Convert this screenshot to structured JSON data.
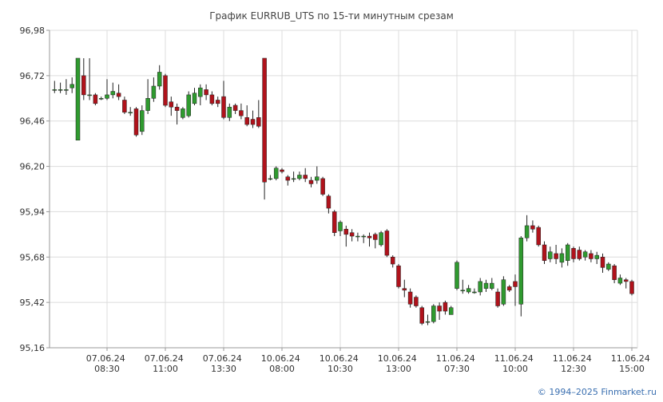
{
  "chart_data": {
    "type": "candlestick",
    "title": "График EURRUB_UTS по 15-ти минутным срезам",
    "credit": "© 1994–2025 Finmarket.ru",
    "up_color": "#2f9a2f",
    "down_color": "#b0121b",
    "grid": true,
    "ylim": [
      95.16,
      96.98
    ],
    "yticks": [
      {
        "value": 95.16,
        "label": "95,16"
      },
      {
        "value": 95.42,
        "label": "95,42"
      },
      {
        "value": 95.68,
        "label": "95,68"
      },
      {
        "value": 95.94,
        "label": "95,94"
      },
      {
        "value": 96.2,
        "label": "96,20"
      },
      {
        "value": 96.46,
        "label": "96,46"
      },
      {
        "value": 96.72,
        "label": "96,72"
      },
      {
        "value": 96.98,
        "label": "96,98"
      }
    ],
    "categories": [
      null,
      null,
      null,
      null,
      null,
      null,
      null,
      null,
      null,
      "07.06.24 08:30",
      null,
      null,
      null,
      null,
      null,
      null,
      null,
      null,
      null,
      "07.06.24 11:00",
      null,
      null,
      null,
      null,
      null,
      null,
      null,
      null,
      null,
      "07.06.24 13:30",
      null,
      null,
      null,
      null,
      null,
      null,
      null,
      null,
      null,
      "10.06.24 08:00",
      null,
      null,
      null,
      null,
      null,
      null,
      null,
      null,
      null,
      "10.06.24 10:30",
      null,
      null,
      null,
      null,
      null,
      null,
      null,
      null,
      null,
      "10.06.24 13:00",
      null,
      null,
      null,
      null,
      null,
      null,
      null,
      null,
      null,
      "11.06.24 07:30",
      null,
      null,
      null,
      null,
      null,
      null,
      null,
      null,
      null,
      "11.06.24 10:00",
      null,
      null,
      null,
      null,
      null,
      null,
      null,
      null,
      null,
      "11.06.24 12:30",
      null,
      null,
      null,
      null,
      null,
      null,
      null,
      null,
      null,
      "11.06.24 15:00"
    ],
    "open": [
      96.64,
      96.64,
      96.64,
      96.65,
      96.35,
      96.72,
      96.61,
      96.61,
      96.59,
      96.59,
      96.61,
      96.62,
      96.58,
      96.51,
      96.53,
      96.4,
      96.52,
      96.59,
      96.66,
      96.72,
      96.57,
      96.54,
      96.48,
      96.49,
      96.56,
      96.6,
      96.64,
      96.61,
      96.58,
      96.6,
      96.48,
      96.55,
      96.52,
      96.48,
      96.47,
      96.48,
      96.82,
      96.13,
      96.13,
      96.18,
      96.14,
      96.13,
      96.13,
      96.15,
      96.12,
      96.12,
      96.13,
      96.03,
      95.94,
      95.83,
      95.84,
      95.82,
      95.8,
      95.8,
      95.8,
      95.81,
      95.75,
      95.83,
      95.68,
      95.63,
      95.5,
      95.48,
      95.45,
      95.39,
      95.31,
      95.31,
      95.4,
      95.42,
      95.35,
      95.5,
      95.49,
      95.48,
      95.48,
      95.48,
      95.5,
      95.5,
      95.48,
      95.41,
      95.51,
      95.54,
      95.41,
      95.79,
      95.86,
      95.85,
      95.75,
      95.67,
      95.7,
      95.65,
      95.66,
      95.73,
      95.72,
      95.68,
      95.7,
      95.67,
      95.68,
      95.61,
      95.63,
      95.53,
      95.55,
      95.54
    ],
    "high": [
      96.69,
      96.68,
      96.7,
      96.71,
      96.82,
      96.82,
      96.82,
      96.62,
      96.6,
      96.7,
      96.68,
      96.67,
      96.6,
      96.54,
      96.54,
      96.55,
      96.7,
      96.71,
      96.78,
      96.73,
      96.6,
      96.56,
      96.54,
      96.63,
      96.65,
      96.67,
      96.67,
      96.63,
      96.6,
      96.69,
      96.56,
      96.56,
      96.56,
      96.55,
      96.52,
      96.58,
      96.82,
      96.15,
      96.2,
      96.19,
      96.15,
      96.17,
      96.17,
      96.19,
      96.14,
      96.2,
      96.14,
      96.04,
      95.95,
      95.89,
      95.86,
      95.84,
      95.82,
      95.81,
      95.82,
      95.82,
      95.83,
      95.84,
      95.69,
      95.64,
      95.55,
      95.5,
      95.46,
      95.4,
      95.35,
      95.41,
      95.42,
      95.43,
      95.4,
      95.66,
      95.55,
      95.52,
      95.5,
      95.56,
      95.55,
      95.56,
      95.5,
      95.57,
      95.52,
      95.58,
      95.8,
      95.92,
      95.89,
      95.86,
      95.77,
      95.74,
      95.75,
      95.73,
      95.76,
      95.74,
      95.74,
      95.72,
      95.72,
      95.71,
      95.7,
      95.65,
      95.64,
      95.58,
      95.56,
      95.55
    ],
    "low": [
      96.62,
      96.62,
      96.61,
      96.62,
      96.35,
      96.58,
      96.58,
      96.55,
      96.58,
      96.58,
      96.59,
      96.58,
      96.5,
      96.49,
      96.37,
      96.38,
      96.5,
      96.57,
      96.64,
      96.54,
      96.49,
      96.44,
      96.47,
      96.48,
      96.55,
      96.55,
      96.58,
      96.55,
      96.54,
      96.47,
      96.46,
      96.5,
      96.47,
      96.43,
      96.42,
      96.42,
      96.01,
      96.12,
      96.12,
      96.16,
      96.09,
      96.11,
      96.12,
      96.11,
      96.08,
      96.1,
      96.03,
      95.93,
      95.8,
      95.8,
      95.74,
      95.77,
      95.77,
      95.76,
      95.74,
      95.73,
      95.74,
      95.68,
      95.62,
      95.5,
      95.45,
      95.39,
      95.39,
      95.29,
      95.29,
      95.3,
      95.32,
      95.35,
      95.35,
      95.49,
      95.47,
      95.47,
      95.47,
      95.46,
      95.48,
      95.49,
      95.39,
      95.4,
      95.48,
      95.4,
      95.34,
      95.77,
      95.82,
      95.74,
      95.64,
      95.65,
      95.64,
      95.62,
      95.63,
      95.65,
      95.66,
      95.66,
      95.65,
      95.64,
      95.59,
      95.6,
      95.53,
      95.52,
      95.5,
      95.46
    ],
    "close": [
      96.64,
      96.64,
      96.64,
      96.67,
      96.82,
      96.61,
      96.61,
      96.56,
      96.59,
      96.61,
      96.63,
      96.6,
      96.51,
      96.51,
      96.38,
      96.52,
      96.59,
      96.66,
      96.74,
      96.55,
      96.54,
      96.52,
      96.53,
      96.61,
      96.62,
      96.65,
      96.61,
      96.56,
      96.56,
      96.48,
      96.54,
      96.52,
      96.49,
      96.44,
      96.44,
      96.43,
      96.11,
      96.13,
      96.19,
      96.17,
      96.12,
      96.13,
      96.15,
      96.13,
      96.1,
      96.14,
      96.04,
      95.96,
      95.82,
      95.88,
      95.81,
      95.8,
      95.8,
      95.8,
      95.79,
      95.78,
      95.82,
      95.69,
      95.64,
      95.51,
      95.49,
      95.41,
      95.4,
      95.3,
      95.31,
      95.4,
      95.37,
      95.37,
      95.39,
      95.65,
      95.49,
      95.5,
      95.48,
      95.54,
      95.53,
      95.53,
      95.4,
      95.55,
      95.49,
      95.51,
      95.79,
      95.86,
      95.84,
      95.75,
      95.66,
      95.71,
      95.67,
      95.7,
      95.75,
      95.67,
      95.67,
      95.71,
      95.67,
      95.69,
      95.62,
      95.64,
      95.55,
      95.56,
      95.54,
      95.47
    ]
  }
}
